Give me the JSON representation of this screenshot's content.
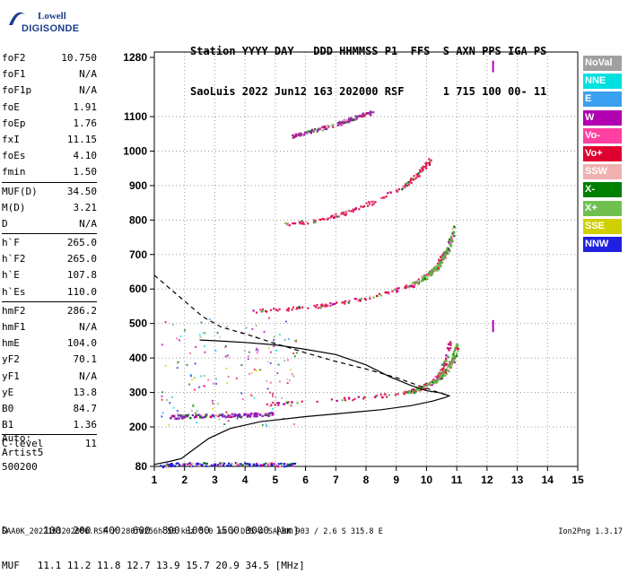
{
  "logo": {
    "line1": "Lowell",
    "line2": "DIGISONDE"
  },
  "header": {
    "line1": "Station YYYY DAY   DDD HHMMSS P1  FFS  S AXN PPS IGA PS",
    "line2": "SaoLuis 2022 Jun12 163 202000 RSF      1 715 100 00- 11"
  },
  "params_groups": [
    [
      {
        "name": "foF2",
        "value": "10.750"
      },
      {
        "name": "foF1",
        "value": "N/A"
      },
      {
        "name": "foF1p",
        "value": "N/A"
      },
      {
        "name": "foE",
        "value": "1.91"
      },
      {
        "name": "foEp",
        "value": "1.76"
      },
      {
        "name": "fxI",
        "value": "11.15"
      },
      {
        "name": "foEs",
        "value": "4.10"
      },
      {
        "name": "fmin",
        "value": "1.50"
      }
    ],
    [
      {
        "name": "MUF(D)",
        "value": "34.50"
      },
      {
        "name": "M(D)",
        "value": "3.21"
      },
      {
        "name": "D",
        "value": "N/A"
      }
    ],
    [
      {
        "name": "h`F",
        "value": "265.0"
      },
      {
        "name": "h`F2",
        "value": "265.0"
      },
      {
        "name": "h`E",
        "value": "107.8"
      },
      {
        "name": "h`Es",
        "value": "110.0"
      }
    ],
    [
      {
        "name": "hmF2",
        "value": "286.2"
      },
      {
        "name": "hmF1",
        "value": "N/A"
      },
      {
        "name": "hmE",
        "value": "104.0"
      },
      {
        "name": "yF2",
        "value": "70.1"
      },
      {
        "name": "yF1",
        "value": "N/A"
      },
      {
        "name": "yE",
        "value": "13.8"
      },
      {
        "name": "B0",
        "value": "84.7"
      },
      {
        "name": "B1",
        "value": "1.36"
      }
    ],
    [
      {
        "name": "C-level",
        "value": "11"
      }
    ]
  ],
  "auto": {
    "line1": "Auto:",
    "line2": "Artist5",
    "line3": "500200"
  },
  "legend": [
    {
      "label": "NoVal",
      "color": "#a0a0a0"
    },
    {
      "label": "NNE",
      "color": "#00e0e0"
    },
    {
      "label": "E",
      "color": "#3aa0f0"
    },
    {
      "label": "W",
      "color": "#b000b0"
    },
    {
      "label": "Vo-",
      "color": "#ff40a0"
    },
    {
      "label": "Vo+",
      "color": "#e00030"
    },
    {
      "label": "SSW",
      "color": "#f0b0b0"
    },
    {
      "label": "X-",
      "color": "#008000"
    },
    {
      "label": "X+",
      "color": "#70c050"
    },
    {
      "label": "SSE",
      "color": "#d0d000"
    },
    {
      "label": "NNW",
      "color": "#2020e0"
    }
  ],
  "chart_data": {
    "type": "scatter",
    "xlabel": "",
    "ylabel": "",
    "xlim": [
      1,
      15
    ],
    "ylim": [
      80,
      1280
    ],
    "xticks": [
      1,
      2,
      3,
      4,
      5,
      6,
      7,
      8,
      9,
      10,
      11,
      12,
      13,
      14,
      15
    ],
    "yticks": [
      80,
      200,
      300,
      400,
      500,
      600,
      700,
      800,
      900,
      1000,
      1100,
      1280
    ],
    "traces": [
      {
        "name": "E-layer",
        "color": "#1a1ad0",
        "points": [
          [
            1.2,
            85
          ],
          [
            1.8,
            88
          ],
          [
            2.5,
            88
          ],
          [
            3.2,
            89
          ],
          [
            4.0,
            89
          ],
          [
            4.6,
            88
          ],
          [
            5.2,
            87
          ],
          [
            5.6,
            87
          ]
        ]
      },
      {
        "name": "Es",
        "color": "#8020c0",
        "points": [
          [
            1.5,
            230
          ],
          [
            2.0,
            232
          ],
          [
            2.6,
            234
          ],
          [
            3.2,
            235
          ],
          [
            3.8,
            236
          ],
          [
            4.4,
            238
          ],
          [
            4.9,
            240
          ]
        ]
      },
      {
        "name": "F2 1st hop",
        "color": "#e0205a",
        "points": [
          [
            4.7,
            268
          ],
          [
            5.5,
            272
          ],
          [
            6.5,
            278
          ],
          [
            7.5,
            284
          ],
          [
            8.3,
            290
          ],
          [
            9.0,
            298
          ],
          [
            9.5,
            306
          ],
          [
            9.9,
            318
          ],
          [
            10.2,
            335
          ],
          [
            10.4,
            355
          ],
          [
            10.55,
            380
          ],
          [
            10.7,
            420
          ],
          [
            10.75,
            450
          ]
        ]
      },
      {
        "name": "F2 1st hop X",
        "color": "#60b040",
        "points": [
          [
            9.4,
            302
          ],
          [
            9.9,
            318
          ],
          [
            10.3,
            335
          ],
          [
            10.6,
            360
          ],
          [
            10.85,
            395
          ],
          [
            11.0,
            440
          ]
        ]
      },
      {
        "name": "F2 2nd hop",
        "color": "#e0205a",
        "points": [
          [
            4.2,
            538
          ],
          [
            5.2,
            542
          ],
          [
            6.2,
            550
          ],
          [
            7.2,
            562
          ],
          [
            8.2,
            580
          ],
          [
            9.0,
            600
          ],
          [
            9.6,
            620
          ],
          [
            10.1,
            650
          ],
          [
            10.4,
            680
          ],
          [
            10.6,
            710
          ]
        ]
      },
      {
        "name": "F2 2nd hop X",
        "color": "#60b040",
        "points": [
          [
            9.5,
            612
          ],
          [
            10.0,
            640
          ],
          [
            10.4,
            670
          ],
          [
            10.7,
            720
          ],
          [
            10.9,
            780
          ]
        ]
      },
      {
        "name": "F2 3rd hop",
        "color": "#e0205a",
        "points": [
          [
            5.3,
            790
          ],
          [
            6.3,
            800
          ],
          [
            7.2,
            820
          ],
          [
            8.1,
            850
          ],
          [
            8.8,
            880
          ],
          [
            9.4,
            910
          ],
          [
            9.8,
            945
          ],
          [
            10.1,
            975
          ]
        ]
      },
      {
        "name": "F2 4th hop",
        "color": "#9030a0",
        "points": [
          [
            5.5,
            1045
          ],
          [
            6.2,
            1060
          ],
          [
            7.0,
            1080
          ],
          [
            7.6,
            1098
          ],
          [
            8.2,
            1115
          ]
        ]
      },
      {
        "name": "Vertical marks",
        "color": "#b000b0",
        "points": [
          [
            12.2,
            1260
          ],
          [
            12.2,
            1245
          ],
          [
            12.2,
            500
          ],
          [
            12.2,
            480
          ]
        ]
      }
    ],
    "profile_solid": [
      [
        1.0,
        86
      ],
      [
        1.5,
        95
      ],
      [
        1.9,
        104
      ],
      [
        2.2,
        125
      ],
      [
        2.8,
        165
      ],
      [
        3.5,
        195
      ],
      [
        4.5,
        215
      ],
      [
        6,
        230
      ],
      [
        7.5,
        242
      ],
      [
        8.5,
        250
      ],
      [
        9.5,
        262
      ],
      [
        10.2,
        275
      ],
      [
        10.6,
        285
      ],
      [
        10.75,
        290
      ],
      [
        10.5,
        298
      ],
      [
        10.0,
        305
      ],
      [
        9.5,
        320
      ],
      [
        8.8,
        345
      ],
      [
        8.0,
        380
      ],
      [
        7.0,
        410
      ],
      [
        6.0,
        425
      ],
      [
        5.0,
        438
      ],
      [
        4.0,
        445
      ],
      [
        3.0,
        450
      ],
      [
        2.5,
        452
      ]
    ],
    "profile_dashed": [
      [
        1.0,
        640
      ],
      [
        1.4,
        610
      ],
      [
        2.0,
        565
      ],
      [
        2.6,
        520
      ],
      [
        3.2,
        490
      ],
      [
        4.0,
        470
      ],
      [
        5.0,
        442
      ],
      [
        6.0,
        415
      ],
      [
        7.0,
        390
      ],
      [
        8.0,
        368
      ],
      [
        9.0,
        343
      ],
      [
        9.8,
        318
      ],
      [
        10.4,
        300
      ],
      [
        10.75,
        290
      ]
    ]
  },
  "footer": {
    "line1": "D      100  200  400  600  800 1000 1500 3000 [km]",
    "line2": "MUF   11.1 11.2 11.8 12.7 13.9 15.7 20.9 34.5 [MHz]",
    "line3": "SAA0K_2022163202000.RSF / 280fx256h 50 kHz 5.0 km / DPS-4 SAA0K 903 / 2.6 S 315.8 E",
    "version": "Ion2Png 1.3.17"
  }
}
